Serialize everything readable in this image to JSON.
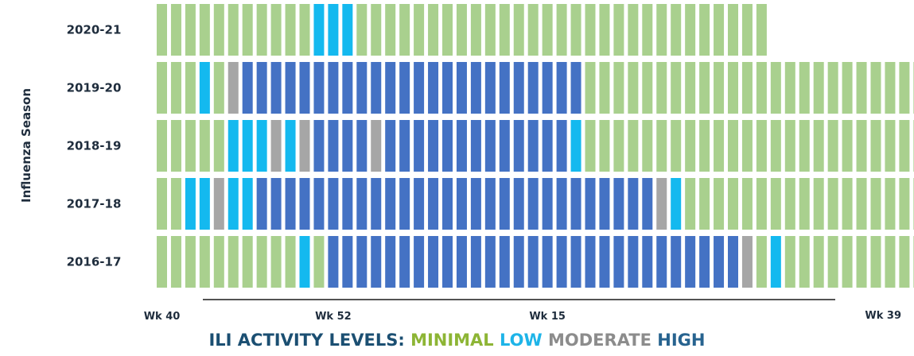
{
  "chart_data": {
    "type": "heatmap",
    "ylabel": "Influenza Season",
    "x_tick_labels": [
      "Wk 40",
      "Wk 52",
      "Wk 15",
      "Wk 39"
    ],
    "legend": {
      "title": "ILI ACTIVITY LEVELS:",
      "levels": [
        {
          "name": "MINIMAL",
          "color": "#8db535"
        },
        {
          "name": "LOW",
          "color": "#1eb4e8"
        },
        {
          "name": "MODERATE",
          "color": "#8c8c8c"
        },
        {
          "name": "HIGH",
          "color": "#27638f"
        }
      ]
    },
    "cell_colors": {
      "M": "#a9d08e",
      "L": "#14b9ef",
      "O": "#a6a6a6",
      "H": "#4472c4"
    },
    "series": [
      {
        "name": "2020-21",
        "levels": "MMMMMMMMMMMLLLMMMMMMMMMMMMMMMMMMMMMMMMMMMMM"
      },
      {
        "name": "2019-20",
        "levels": "MMMLMOHHHHHHHHHHHHHHHHHHHHHHHHMMMMMMMMMMMMMMMMMMMMMMMMMMMM"
      },
      {
        "name": "2018-19",
        "levels": "MMMMMLLLOLOHHHHOHHHHHHHHHHHHHLMMMMMMMMMMMMMMMMMMMMMMMMMMMMMM"
      },
      {
        "name": "2017-18",
        "levels": "MMLLOLLHHHHHHHHHHHHHHHHHHHHHHHHHHHHOLMMMMMMMMMMMMMMMMMMMMMMMMM"
      },
      {
        "name": "2016-17",
        "levels": "MMMMMMMMMMLMHHHHHHHHHHHHHHHHHHHHHHHHHHHHHOMLMMMMMMMMMMMMMMMMMMMMMMMMMMMMMMM"
      }
    ]
  }
}
